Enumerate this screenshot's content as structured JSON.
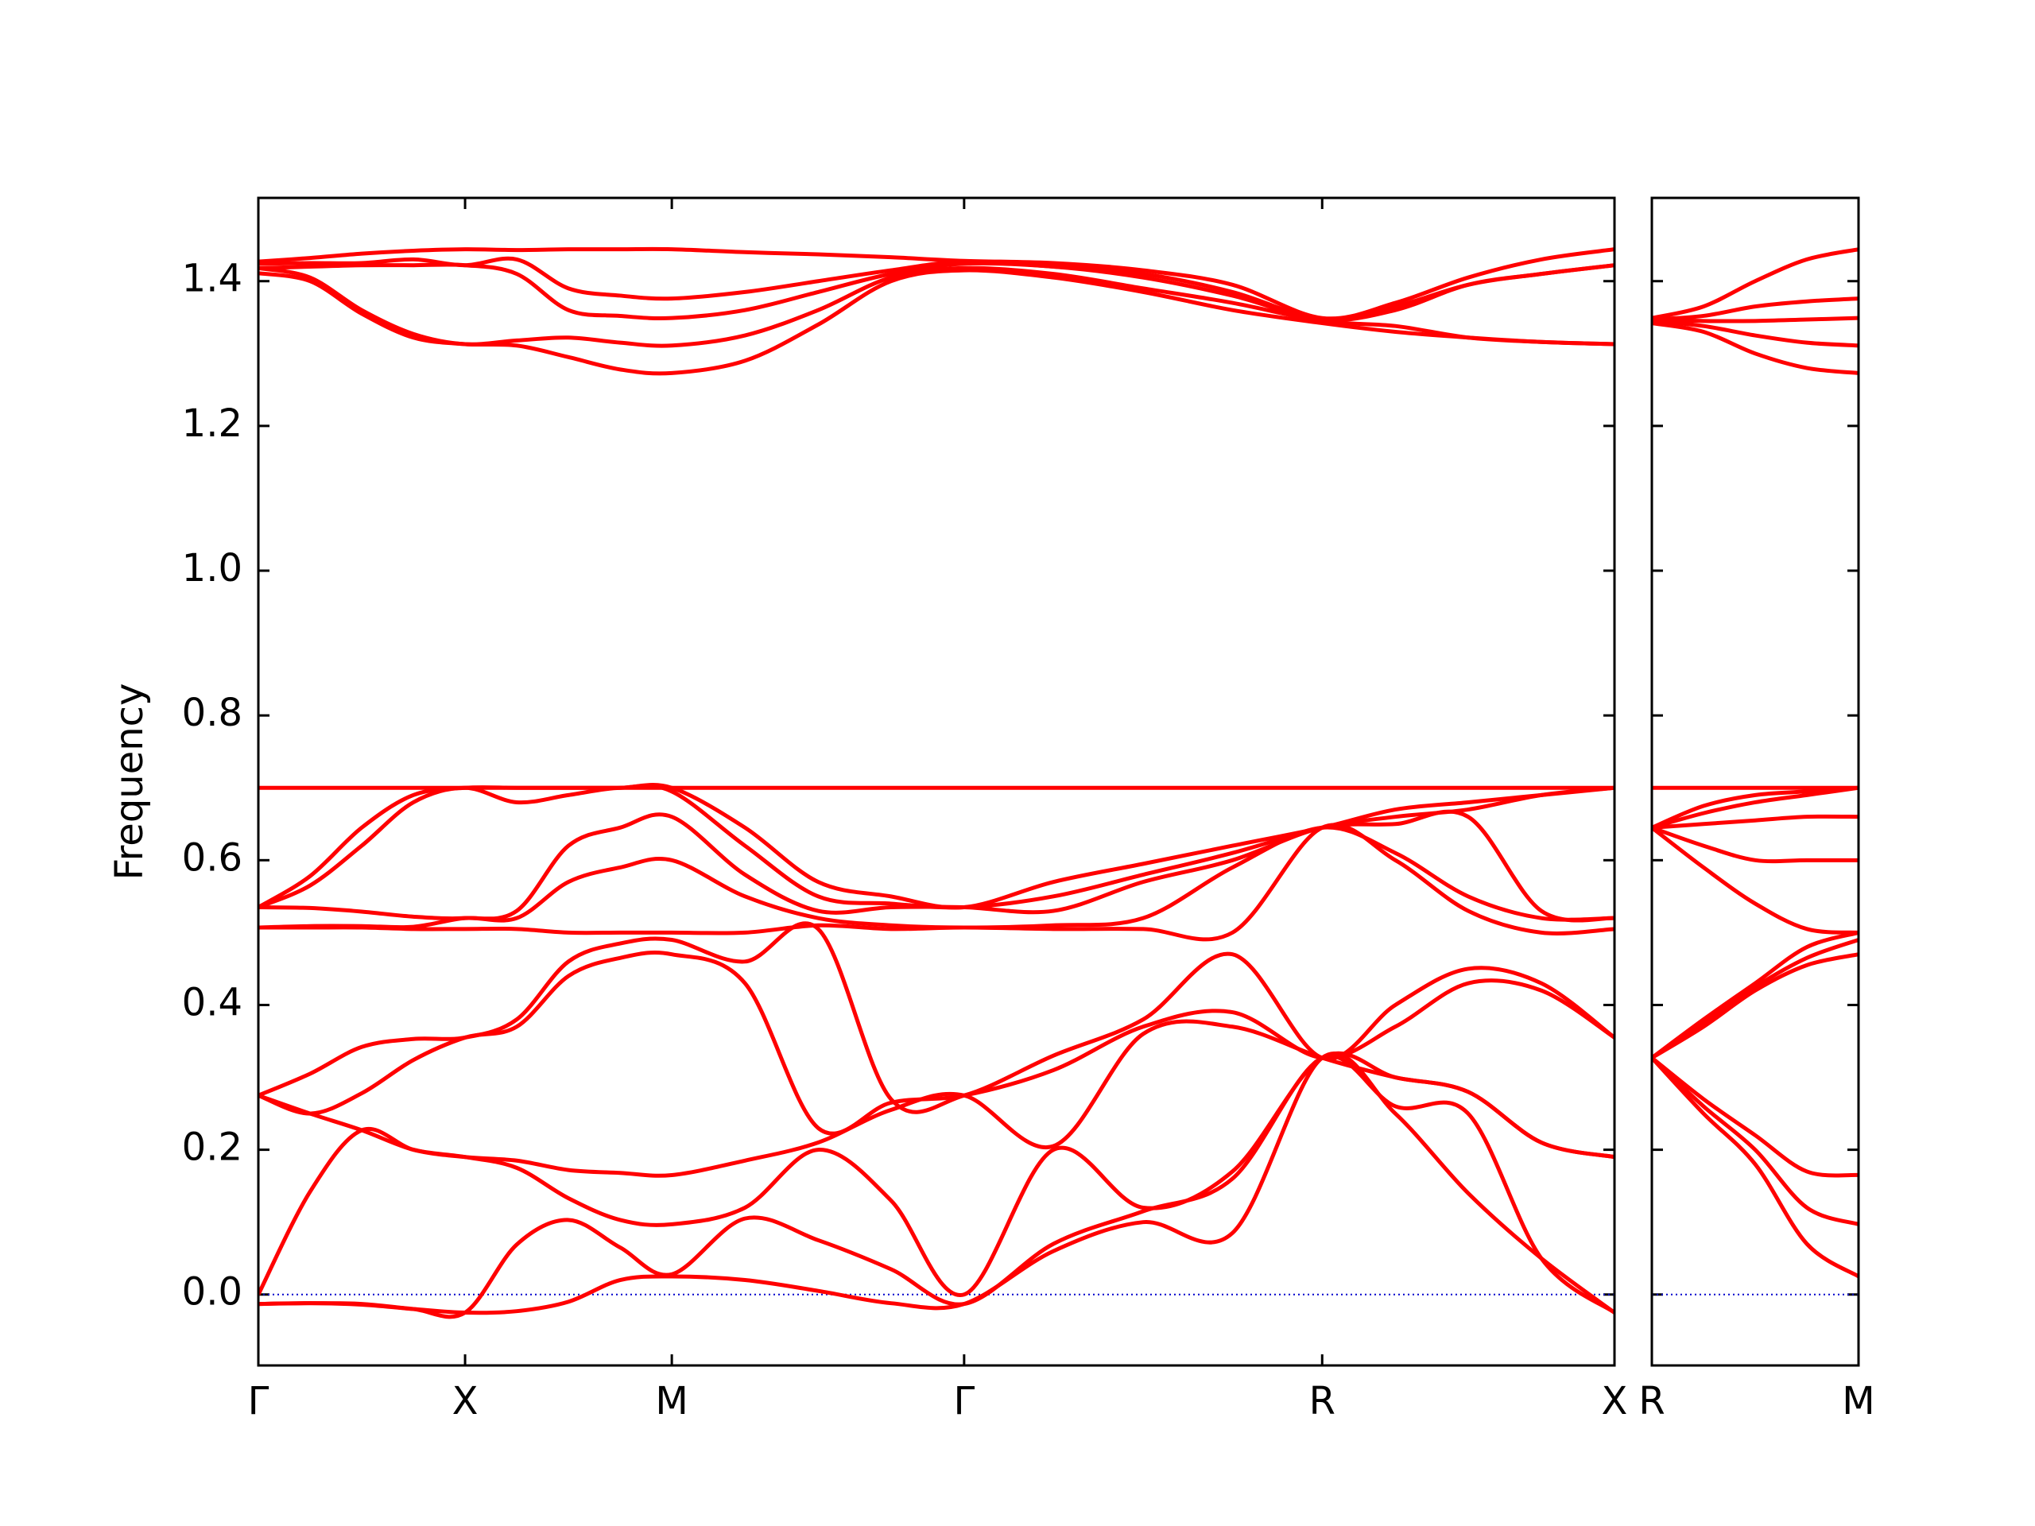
{
  "chart_data": [
    {
      "type": "line",
      "ylabel": "Frequency",
      "color": "#ff0000",
      "hline": 0,
      "hline_color": "#0000cc",
      "xlim": [
        0,
        3.28
      ],
      "ylim": [
        -0.098,
        1.515
      ],
      "xticks": [
        {
          "value": 0,
          "label": "Γ"
        },
        {
          "value": 0.5,
          "label": "X"
        },
        {
          "value": 1,
          "label": "M"
        },
        {
          "value": 1.707,
          "label": "Γ"
        },
        {
          "value": 2.573,
          "label": "R"
        },
        {
          "value": 3.28,
          "label": "X"
        }
      ],
      "yticks": [
        {
          "value": 0,
          "label": "0.0"
        },
        0.2,
        0.4,
        0.6,
        0.8,
        {
          "value": 1,
          "label": "1.0"
        },
        1.2,
        1.4
      ],
      "x": [
        0,
        0.125,
        0.25,
        0.375,
        0.5,
        0.625,
        0.75,
        0.875,
        1,
        1.177,
        1.354,
        1.53,
        1.707,
        1.923,
        2.14,
        2.356,
        2.573,
        2.75,
        2.926,
        3.103,
        3.28
      ],
      "series": [
        {
          "values": [
            -0.013,
            -0.012,
            -0.014,
            -0.02,
            -0.025,
            -0.023,
            -0.01,
            0.02,
            0.025,
            0.02,
            0.005,
            -0.012,
            -0.013,
            0.06,
            0.1,
            0.085,
            0.327,
            0.25,
            0.14,
            0.05,
            -0.025
          ]
        },
        {
          "values": [
            -0.013,
            -0.012,
            -0.013,
            -0.02,
            -0.025,
            0.069,
            0.103,
            0.065,
            0.028,
            0.105,
            0.075,
            0.035,
            -0.013,
            0.07,
            0.115,
            0.16,
            0.327,
            0.26,
            0.25,
            0.05,
            -0.025
          ]
        },
        {
          "values": [
            0,
            0.142,
            0.227,
            0.2,
            0.19,
            0.175,
            0.133,
            0.103,
            0.097,
            0.12,
            0.2,
            0.13,
            0,
            0.2,
            0.12,
            0.17,
            0.327,
            0.3,
            0.28,
            0.21,
            0.19
          ]
        },
        {
          "values": [
            0.275,
            0.25,
            0.227,
            0.2,
            0.19,
            0.185,
            0.172,
            0.168,
            0.165,
            0.185,
            0.21,
            0.255,
            0.275,
            0.205,
            0.36,
            0.37,
            0.327,
            0.3,
            0.28,
            0.21,
            0.19
          ]
        },
        {
          "values": [
            0.275,
            0.25,
            0.278,
            0.324,
            0.355,
            0.37,
            0.44,
            0.465,
            0.47,
            0.43,
            0.23,
            0.265,
            0.275,
            0.31,
            0.37,
            0.39,
            0.327,
            0.37,
            0.43,
            0.42,
            0.355
          ]
        },
        {
          "values": [
            0.275,
            0.305,
            0.342,
            0.353,
            0.355,
            0.38,
            0.46,
            0.485,
            0.49,
            0.46,
            0.505,
            0.27,
            0.275,
            0.33,
            0.38,
            0.47,
            0.327,
            0.4,
            0.45,
            0.43,
            0.355
          ]
        },
        {
          "values": [
            0.507,
            0.507,
            0.507,
            0.505,
            0.505,
            0.505,
            0.5,
            0.5,
            0.5,
            0.5,
            0.51,
            0.505,
            0.507,
            0.505,
            0.505,
            0.5,
            0.645,
            0.6,
            0.53,
            0.5,
            0.505
          ]
        },
        {
          "values": [
            0.507,
            0.509,
            0.509,
            0.508,
            0.52,
            0.52,
            0.57,
            0.59,
            0.6,
            0.55,
            0.52,
            0.51,
            0.507,
            0.51,
            0.52,
            0.59,
            0.645,
            0.61,
            0.55,
            0.52,
            0.52
          ]
        },
        {
          "values": [
            0.535,
            0.534,
            0.529,
            0.522,
            0.52,
            0.53,
            0.62,
            0.645,
            0.66,
            0.58,
            0.53,
            0.535,
            0.535,
            0.53,
            0.57,
            0.6,
            0.645,
            0.65,
            0.66,
            0.53,
            0.52
          ]
        },
        {
          "values": [
            0.535,
            0.565,
            0.62,
            0.68,
            0.7,
            0.68,
            0.69,
            0.7,
            0.695,
            0.62,
            0.55,
            0.54,
            0.535,
            0.55,
            0.58,
            0.61,
            0.645,
            0.66,
            0.67,
            0.69,
            0.7
          ]
        },
        {
          "values": [
            0.535,
            0.578,
            0.645,
            0.69,
            0.7,
            0.7,
            0.7,
            0.7,
            0.7,
            0.645,
            0.57,
            0.55,
            0.535,
            0.57,
            0.595,
            0.62,
            0.645,
            0.67,
            0.68,
            0.69,
            0.7
          ]
        },
        {
          "values": [
            0.7,
            0.7,
            0.7,
            0.7,
            0.7,
            0.7,
            0.7,
            0.7,
            0.7,
            0.7,
            0.7,
            0.7,
            0.7,
            0.7,
            0.7,
            0.7,
            0.7,
            0.7,
            0.7,
            0.7,
            0.7
          ]
        },
        {
          "values": [
            1.411,
            1.4,
            1.355,
            1.322,
            1.313,
            1.311,
            1.295,
            1.278,
            1.273,
            1.29,
            1.34,
            1.4,
            1.415,
            1.405,
            1.385,
            1.36,
            1.342,
            1.33,
            1.322,
            1.316,
            1.313
          ]
        },
        {
          "values": [
            1.418,
            1.405,
            1.36,
            1.327,
            1.313,
            1.318,
            1.322,
            1.315,
            1.311,
            1.325,
            1.36,
            1.405,
            1.418,
            1.41,
            1.39,
            1.37,
            1.345,
            1.338,
            1.322,
            1.316,
            1.313
          ]
        },
        {
          "values": [
            1.418,
            1.42,
            1.422,
            1.422,
            1.422,
            1.41,
            1.36,
            1.352,
            1.349,
            1.36,
            1.385,
            1.41,
            1.424,
            1.42,
            1.405,
            1.38,
            1.347,
            1.36,
            1.395,
            1.41,
            1.422
          ]
        },
        {
          "values": [
            1.424,
            1.425,
            1.425,
            1.43,
            1.422,
            1.43,
            1.39,
            1.38,
            1.376,
            1.385,
            1.4,
            1.415,
            1.427,
            1.42,
            1.41,
            1.385,
            1.347,
            1.365,
            1.395,
            1.41,
            1.422
          ]
        },
        {
          "values": [
            1.427,
            1.432,
            1.438,
            1.442,
            1.444,
            1.443,
            1.444,
            1.444,
            1.444,
            1.44,
            1.437,
            1.433,
            1.428,
            1.425,
            1.415,
            1.395,
            1.349,
            1.37,
            1.405,
            1.43,
            1.444
          ]
        }
      ]
    },
    {
      "type": "line",
      "color": "#ff0000",
      "hline": 0,
      "hline_color": "#0000cc",
      "ytick_labels": false,
      "xlim": [
        0,
        0.5
      ],
      "ylim": [
        -0.098,
        1.515
      ],
      "xticks": [
        {
          "value": 0,
          "label": "R"
        },
        {
          "value": 0.5,
          "label": "M"
        }
      ],
      "yticks": [
        0,
        0.2,
        0.4,
        0.6,
        0.8,
        1,
        1.2,
        1.4
      ],
      "x": [
        0,
        0.125,
        0.25,
        0.375,
        0.5
      ],
      "series": [
        {
          "values": [
            0.327,
            0.25,
            0.18,
            0.07,
            0.025
          ]
        },
        {
          "values": [
            0.327,
            0.26,
            0.2,
            0.12,
            0.097
          ]
        },
        {
          "values": [
            0.327,
            0.27,
            0.22,
            0.17,
            0.165
          ]
        },
        {
          "values": [
            0.327,
            0.37,
            0.42,
            0.455,
            0.47
          ]
        },
        {
          "values": [
            0.327,
            0.375,
            0.425,
            0.465,
            0.49
          ]
        },
        {
          "values": [
            0.327,
            0.38,
            0.43,
            0.48,
            0.5
          ]
        },
        {
          "values": [
            0.645,
            0.59,
            0.54,
            0.505,
            0.5
          ]
        },
        {
          "values": [
            0.645,
            0.62,
            0.6,
            0.6,
            0.6
          ]
        },
        {
          "values": [
            0.645,
            0.65,
            0.655,
            0.66,
            0.66
          ]
        },
        {
          "values": [
            0.645,
            0.665,
            0.68,
            0.69,
            0.7
          ]
        },
        {
          "values": [
            0.645,
            0.675,
            0.69,
            0.695,
            0.7
          ]
        },
        {
          "values": [
            0.7,
            0.7,
            0.7,
            0.7,
            0.7
          ]
        },
        {
          "values": [
            1.342,
            1.33,
            1.3,
            1.28,
            1.273
          ]
        },
        {
          "values": [
            1.345,
            1.338,
            1.325,
            1.315,
            1.311
          ]
        },
        {
          "values": [
            1.347,
            1.345,
            1.345,
            1.347,
            1.349
          ]
        },
        {
          "values": [
            1.347,
            1.352,
            1.365,
            1.372,
            1.376
          ]
        },
        {
          "values": [
            1.349,
            1.365,
            1.4,
            1.43,
            1.444
          ]
        }
      ]
    }
  ]
}
